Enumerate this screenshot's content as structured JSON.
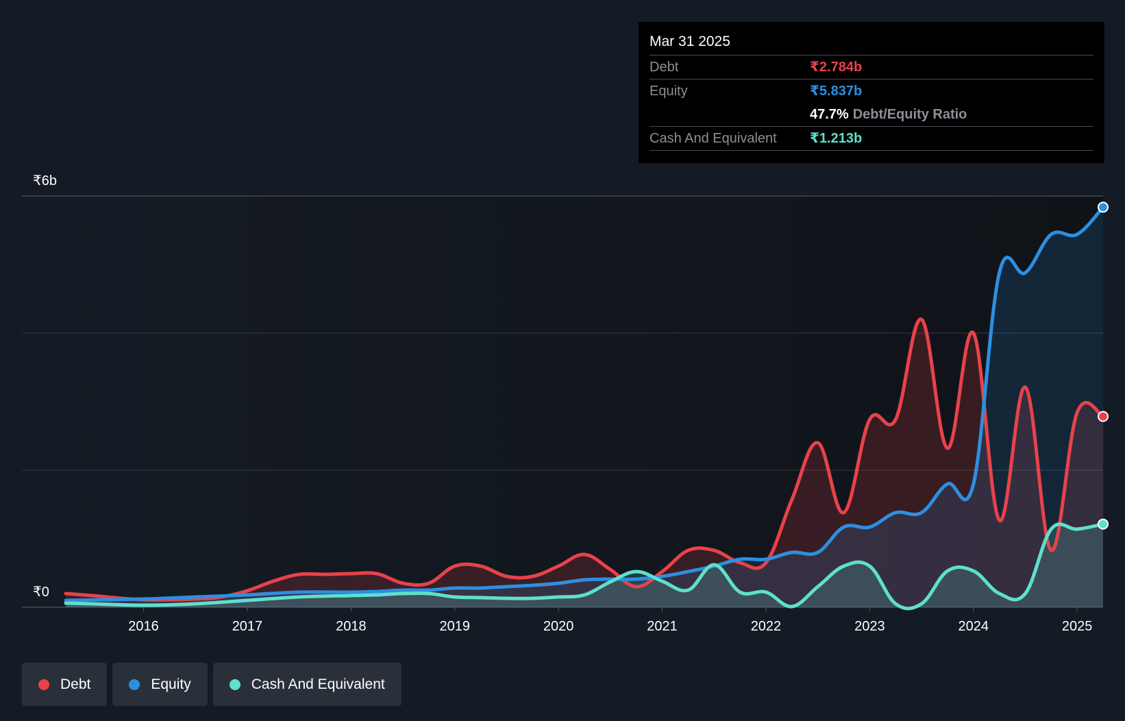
{
  "chart_data": {
    "type": "area",
    "y_axis_labels": {
      "top": "₹6b",
      "bottom": "₹0"
    },
    "ylim": [
      0,
      6
    ],
    "x_ticks": [
      "2016",
      "2017",
      "2018",
      "2019",
      "2020",
      "2021",
      "2022",
      "2023",
      "2024",
      "2025"
    ],
    "x_tick_values": [
      2016,
      2017,
      2018,
      2019,
      2020,
      2021,
      2022,
      2023,
      2024,
      2025
    ],
    "xlim": [
      2015.25,
      2025.25
    ],
    "series": [
      {
        "name": "Debt",
        "color": "#e8424a",
        "points": [
          [
            2015.25,
            0.2
          ],
          [
            2015.5,
            0.17
          ],
          [
            2016.0,
            0.11
          ],
          [
            2016.5,
            0.12
          ],
          [
            2016.75,
            0.15
          ],
          [
            2017.0,
            0.24
          ],
          [
            2017.25,
            0.38
          ],
          [
            2017.5,
            0.48
          ],
          [
            2017.75,
            0.48
          ],
          [
            2018.0,
            0.49
          ],
          [
            2018.25,
            0.49
          ],
          [
            2018.5,
            0.35
          ],
          [
            2018.75,
            0.35
          ],
          [
            2019.0,
            0.6
          ],
          [
            2019.25,
            0.6
          ],
          [
            2019.5,
            0.45
          ],
          [
            2019.75,
            0.45
          ],
          [
            2020.0,
            0.6
          ],
          [
            2020.25,
            0.77
          ],
          [
            2020.5,
            0.55
          ],
          [
            2020.75,
            0.3
          ],
          [
            2021.0,
            0.52
          ],
          [
            2021.25,
            0.83
          ],
          [
            2021.5,
            0.83
          ],
          [
            2021.75,
            0.65
          ],
          [
            2022.0,
            0.65
          ],
          [
            2022.25,
            1.57
          ],
          [
            2022.5,
            2.4
          ],
          [
            2022.75,
            1.38
          ],
          [
            2023.0,
            2.74
          ],
          [
            2023.25,
            2.74
          ],
          [
            2023.5,
            4.2
          ],
          [
            2023.75,
            2.32
          ],
          [
            2024.0,
            4.0
          ],
          [
            2024.25,
            1.27
          ],
          [
            2024.5,
            3.21
          ],
          [
            2024.75,
            0.83
          ],
          [
            2025.0,
            2.84
          ],
          [
            2025.25,
            2.784
          ]
        ]
      },
      {
        "name": "Equity",
        "color": "#2d8fe0",
        "points": [
          [
            2015.25,
            0.1
          ],
          [
            2016.0,
            0.12
          ],
          [
            2016.5,
            0.15
          ],
          [
            2017.0,
            0.18
          ],
          [
            2017.5,
            0.22
          ],
          [
            2018.0,
            0.22
          ],
          [
            2018.25,
            0.23
          ],
          [
            2018.5,
            0.25
          ],
          [
            2018.75,
            0.25
          ],
          [
            2019.0,
            0.28
          ],
          [
            2019.25,
            0.28
          ],
          [
            2019.5,
            0.3
          ],
          [
            2019.75,
            0.32
          ],
          [
            2020.0,
            0.35
          ],
          [
            2020.25,
            0.4
          ],
          [
            2020.5,
            0.41
          ],
          [
            2020.75,
            0.41
          ],
          [
            2021.0,
            0.45
          ],
          [
            2021.25,
            0.52
          ],
          [
            2021.5,
            0.6
          ],
          [
            2021.75,
            0.7
          ],
          [
            2022.0,
            0.7
          ],
          [
            2022.25,
            0.8
          ],
          [
            2022.5,
            0.8
          ],
          [
            2022.75,
            1.17
          ],
          [
            2023.0,
            1.17
          ],
          [
            2023.25,
            1.38
          ],
          [
            2023.5,
            1.38
          ],
          [
            2023.75,
            1.8
          ],
          [
            2024.0,
            1.8
          ],
          [
            2024.25,
            4.88
          ],
          [
            2024.5,
            4.88
          ],
          [
            2024.75,
            5.44
          ],
          [
            2025.0,
            5.44
          ],
          [
            2025.25,
            5.837
          ]
        ]
      },
      {
        "name": "Cash And Equivalent",
        "color": "#5ee0cc",
        "points": [
          [
            2015.25,
            0.06
          ],
          [
            2015.5,
            0.05
          ],
          [
            2016.0,
            0.03
          ],
          [
            2016.5,
            0.05
          ],
          [
            2017.0,
            0.1
          ],
          [
            2017.5,
            0.15
          ],
          [
            2018.0,
            0.17
          ],
          [
            2018.25,
            0.18
          ],
          [
            2018.5,
            0.2
          ],
          [
            2018.75,
            0.2
          ],
          [
            2019.0,
            0.15
          ],
          [
            2019.25,
            0.14
          ],
          [
            2019.5,
            0.13
          ],
          [
            2019.75,
            0.13
          ],
          [
            2020.0,
            0.15
          ],
          [
            2020.25,
            0.18
          ],
          [
            2020.5,
            0.37
          ],
          [
            2020.75,
            0.52
          ],
          [
            2021.0,
            0.38
          ],
          [
            2021.25,
            0.25
          ],
          [
            2021.5,
            0.62
          ],
          [
            2021.75,
            0.22
          ],
          [
            2022.0,
            0.22
          ],
          [
            2022.25,
            0.01
          ],
          [
            2022.5,
            0.3
          ],
          [
            2022.75,
            0.6
          ],
          [
            2023.0,
            0.6
          ],
          [
            2023.25,
            0.05
          ],
          [
            2023.5,
            0.05
          ],
          [
            2023.75,
            0.53
          ],
          [
            2024.0,
            0.53
          ],
          [
            2024.25,
            0.2
          ],
          [
            2024.5,
            0.2
          ],
          [
            2024.75,
            1.14
          ],
          [
            2025.0,
            1.14
          ],
          [
            2025.25,
            1.213
          ]
        ]
      }
    ]
  },
  "tooltip": {
    "date": "Mar 31 2025",
    "debt_label": "Debt",
    "debt_value": "₹2.784b",
    "equity_label": "Equity",
    "equity_value": "₹5.837b",
    "ratio_value": "47.7%",
    "ratio_label": "Debt/Equity Ratio",
    "cash_label": "Cash And Equivalent",
    "cash_value": "₹1.213b"
  },
  "legend": [
    {
      "label": "Debt",
      "color": "#e8424a"
    },
    {
      "label": "Equity",
      "color": "#2d8fe0"
    },
    {
      "label": "Cash And Equivalent",
      "color": "#5ee0cc"
    }
  ],
  "colors": {
    "background": "#151b24",
    "debt": "#e8424a",
    "equity": "#2d8fe0",
    "cash": "#5ee0cc"
  }
}
